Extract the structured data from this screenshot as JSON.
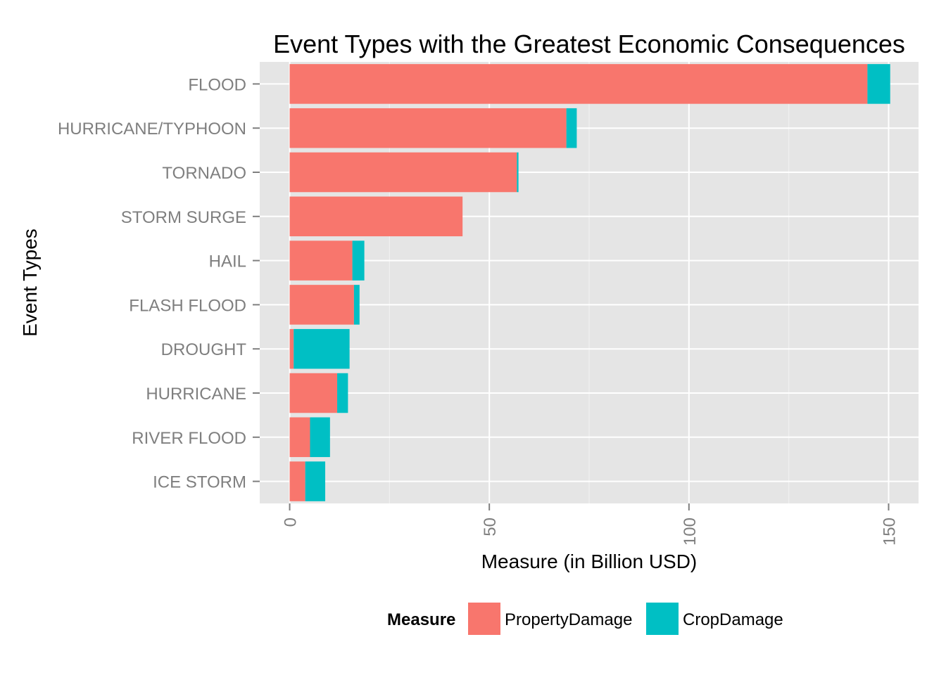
{
  "chart_data": {
    "type": "bar",
    "orientation": "horizontal",
    "stacked": true,
    "title": "Event Types with the Greatest Economic Consequences",
    "xlabel": "Measure (in Billion USD)",
    "ylabel": "Event Types",
    "xlim": [
      -7.5,
      157.5
    ],
    "xticks": [
      0,
      50,
      100,
      150
    ],
    "xtick_labels": [
      "0",
      "50",
      "100",
      "150"
    ],
    "grid": true,
    "legend_position": "bottom",
    "legend": {
      "title": "Measure",
      "entries": [
        "PropertyDamage",
        "CropDamage"
      ]
    },
    "colors": {
      "PropertyDamage": "#f8766d",
      "CropDamage": "#00bfc4"
    },
    "categories": [
      "FLOOD",
      "HURRICANE/TYPHOON",
      "TORNADO",
      "STORM SURGE",
      "HAIL",
      "FLASH FLOOD",
      "DROUGHT",
      "HURRICANE",
      "RIVER FLOOD",
      "ICE STORM"
    ],
    "series": [
      {
        "name": "PropertyDamage",
        "values": [
          144.7,
          69.3,
          56.9,
          43.3,
          15.7,
          16.1,
          1.0,
          11.9,
          5.1,
          3.9
        ]
      },
      {
        "name": "CropDamage",
        "values": [
          5.7,
          2.6,
          0.4,
          0.0,
          3.0,
          1.4,
          14.0,
          2.7,
          5.0,
          5.0
        ]
      }
    ]
  }
}
